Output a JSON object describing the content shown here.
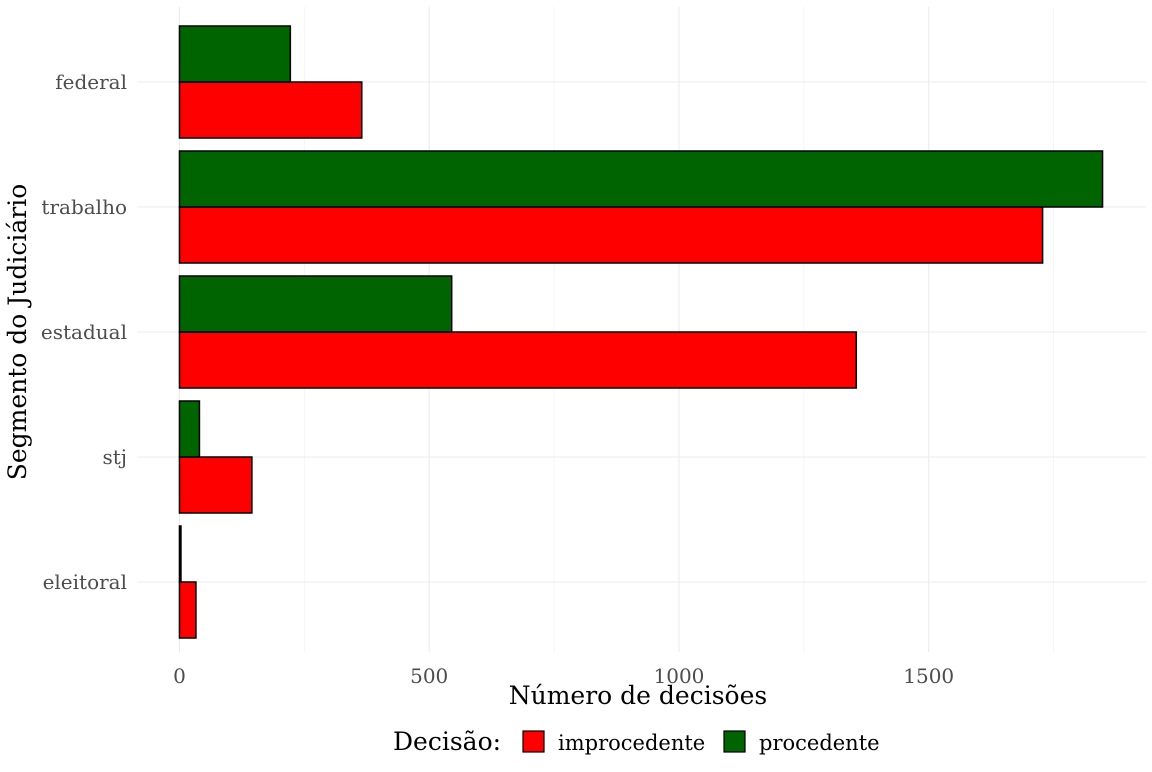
{
  "chart_data": {
    "type": "bar",
    "orientation": "horizontal",
    "categories": [
      "eleitoral",
      "stj",
      "estadual",
      "trabalho",
      "federal"
    ],
    "series": [
      {
        "name": "improcedente",
        "color": "#ff0000",
        "values": [
          33,
          145,
          1355,
          1728,
          365
        ]
      },
      {
        "name": "procedente",
        "color": "#006400",
        "values": [
          3,
          40,
          545,
          1848,
          222
        ]
      }
    ],
    "xlabel": "Número de decisões",
    "ylabel": "Segmento do Judiciário",
    "xlim": [
      -85,
      1935
    ],
    "x_ticks": [
      0,
      500,
      1000,
      1500
    ],
    "x_tick_labels": [
      "0",
      "500",
      "1000",
      "1500"
    ],
    "grid": true,
    "legend": {
      "title": "Decisão:",
      "position": "bottom",
      "entries": [
        "improcedente",
        "procedente"
      ]
    }
  }
}
